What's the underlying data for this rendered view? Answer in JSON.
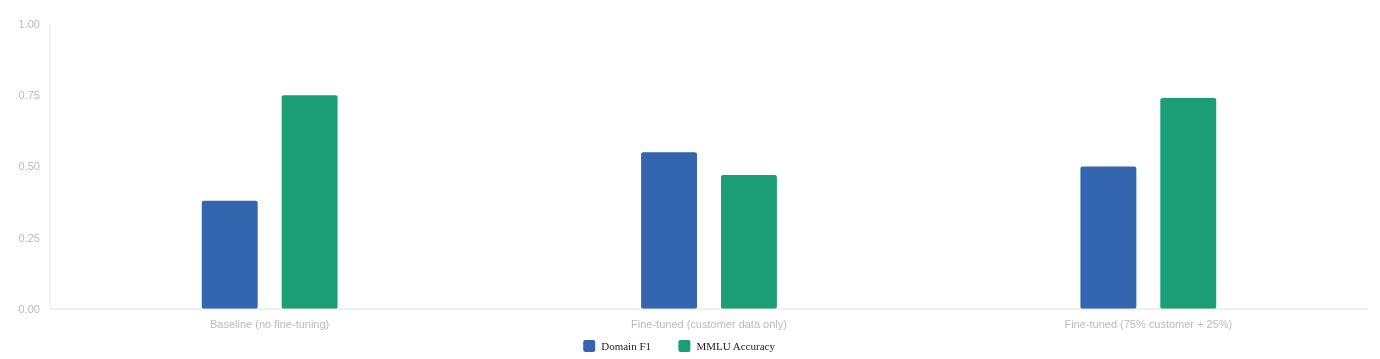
{
  "chart_data": {
    "type": "bar",
    "categories": [
      "Baseline (no fine-tuning)",
      "Fine-tuned (customer data only)",
      "Fine-tuned (75% customer + 25%)"
    ],
    "series": [
      {
        "name": "Domain F1",
        "color": "#3366ae",
        "values": [
          0.38,
          0.55,
          0.5
        ]
      },
      {
        "name": "MMLU Accuracy",
        "color": "#1c9e74",
        "values": [
          0.75,
          0.47,
          0.74
        ]
      }
    ],
    "ylim": [
      0,
      1
    ],
    "yticks": [
      {
        "value": 0,
        "label": "0.00"
      },
      {
        "value": 0.25,
        "label": "0.25"
      },
      {
        "value": 0.5,
        "label": "0.50"
      },
      {
        "value": 0.75,
        "label": "0.75"
      },
      {
        "value": 1,
        "label": "1.00"
      }
    ],
    "grid": false,
    "legend": "bottom"
  }
}
